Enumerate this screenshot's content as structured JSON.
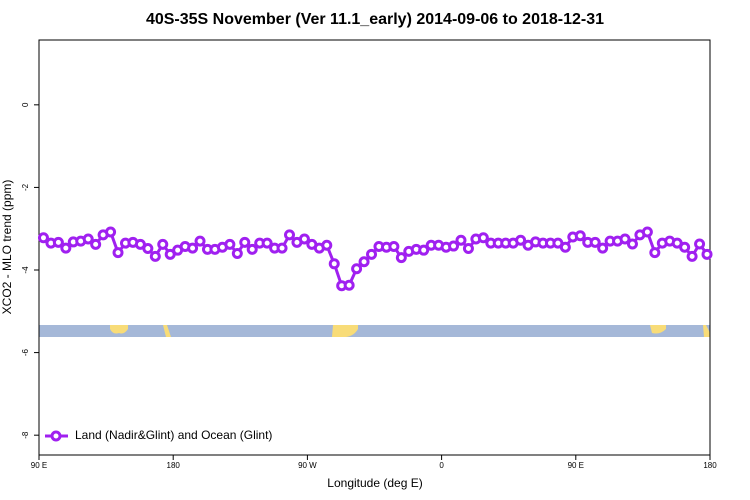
{
  "chart_data": {
    "type": "line",
    "title": "40S-35S November (Ver 11.1_early)   2014-09-06 to 2018-12-31",
    "x_label": "Longitude (deg E)",
    "y_label": "XCO2 - MLO trend (ppm)",
    "xlim": [
      90,
      540
    ],
    "xticks": [
      {
        "value": 90,
        "label": "90 E"
      },
      {
        "value": 180,
        "label": "180"
      },
      {
        "value": 270,
        "label": "90 W"
      },
      {
        "value": 360,
        "label": "0"
      },
      {
        "value": 450,
        "label": "90 E"
      },
      {
        "value": 540,
        "label": "180"
      }
    ],
    "ylim": [
      -8.48,
      1.57
    ],
    "yticks": [
      0,
      -2,
      -4,
      -6,
      -8
    ],
    "legend": "bottom-left",
    "x": [
      93,
      98,
      103,
      108,
      113,
      118,
      123,
      128,
      133,
      138,
      143,
      148,
      153,
      158,
      163,
      168,
      173,
      178,
      183,
      188,
      193,
      198,
      203,
      208,
      213,
      218,
      223,
      228,
      233,
      238,
      243,
      248,
      253,
      258,
      263,
      268,
      273,
      278,
      283,
      288,
      293,
      298,
      303,
      308,
      313,
      318,
      323,
      328,
      333,
      338,
      343,
      348,
      353,
      358,
      363,
      368,
      373,
      378,
      383,
      388,
      393,
      398,
      403,
      408,
      413,
      418,
      423,
      428,
      433,
      438,
      443,
      448,
      453,
      458,
      463,
      468,
      473,
      478,
      483,
      488,
      493,
      498,
      503,
      508,
      513,
      518,
      523,
      528,
      533,
      538
    ],
    "series": [
      {
        "name": "Land (Nadir&Glint) and Ocean (Glint)",
        "color": "#a020f0",
        "values": [
          -3.22,
          -3.35,
          -3.33,
          -3.47,
          -3.32,
          -3.3,
          -3.25,
          -3.38,
          -3.15,
          -3.08,
          -3.58,
          -3.35,
          -3.33,
          -3.38,
          -3.48,
          -3.67,
          -3.38,
          -3.62,
          -3.52,
          -3.43,
          -3.47,
          -3.3,
          -3.5,
          -3.5,
          -3.45,
          -3.38,
          -3.6,
          -3.33,
          -3.5,
          -3.35,
          -3.35,
          -3.47,
          -3.47,
          -3.15,
          -3.33,
          -3.25,
          -3.38,
          -3.47,
          -3.4,
          -3.85,
          -4.38,
          -4.37,
          -3.97,
          -3.8,
          -3.62,
          -3.43,
          -3.45,
          -3.43,
          -3.7,
          -3.55,
          -3.5,
          -3.52,
          -3.4,
          -3.4,
          -3.45,
          -3.42,
          -3.28,
          -3.48,
          -3.25,
          -3.22,
          -3.35,
          -3.35,
          -3.35,
          -3.35,
          -3.28,
          -3.4,
          -3.32,
          -3.35,
          -3.35,
          -3.35,
          -3.45,
          -3.2,
          -3.17,
          -3.33,
          -3.33,
          -3.47,
          -3.3,
          -3.3,
          -3.25,
          -3.37,
          -3.15,
          -3.08,
          -3.58,
          -3.35,
          -3.3,
          -3.35,
          -3.45,
          -3.67,
          -3.37,
          -3.62
        ]
      }
    ]
  }
}
